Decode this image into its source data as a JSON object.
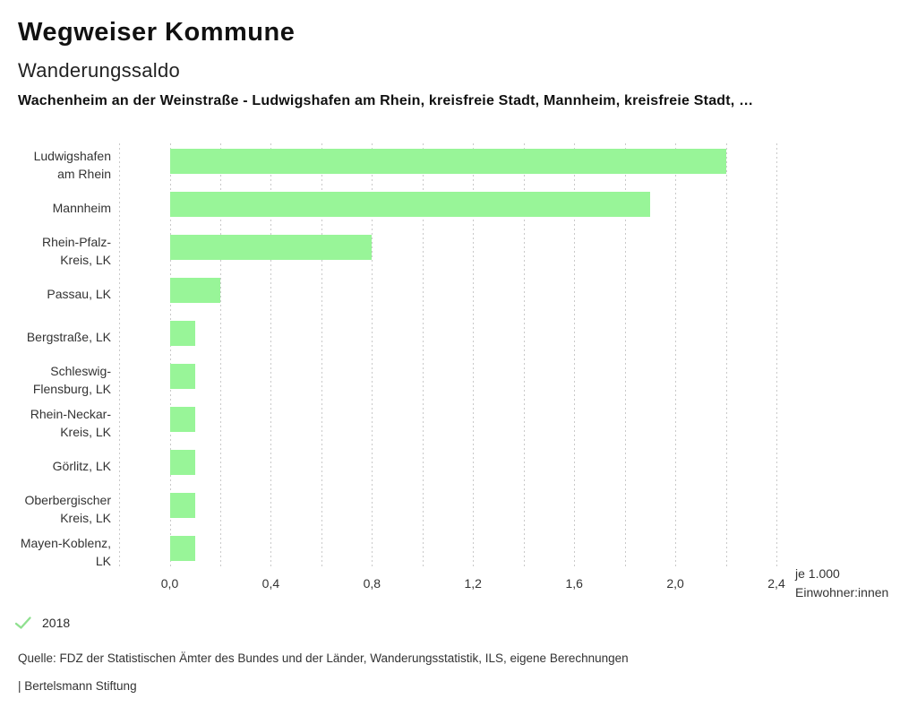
{
  "header": {
    "app_title": "Wegweiser Kommune",
    "chart_title": "Wanderungssaldo",
    "subtitle": "Wachenheim an der Weinstraße - Ludwigshafen am Rhein, kreisfreie Stadt, Mannheim, kreisfreie Stadt, …"
  },
  "chart_data": {
    "type": "bar",
    "orientation": "horizontal",
    "title": "Wanderungssaldo",
    "categories": [
      "Ludwigshafen am Rhein",
      "Mannheim",
      "Rhein-Pfalz-Kreis, LK",
      "Passau, LK",
      "Bergstraße, LK",
      "Schleswig-Flensburg, LK",
      "Rhein-Neckar-Kreis, LK",
      "Görlitz, LK",
      "Oberbergischer Kreis, LK",
      "Mayen-Koblenz, LK"
    ],
    "label_lines": [
      [
        "Ludwigshafen",
        "am Rhein"
      ],
      [
        "Mannheim"
      ],
      [
        "Rhein-Pfalz-",
        "Kreis, LK"
      ],
      [
        "Passau, LK"
      ],
      [
        "Bergstraße, LK"
      ],
      [
        "Schleswig-",
        "Flensburg, LK"
      ],
      [
        "Rhein-Neckar-",
        "Kreis, LK"
      ],
      [
        "Görlitz, LK"
      ],
      [
        "Oberbergischer",
        "Kreis, LK"
      ],
      [
        "Mayen-Koblenz,",
        "LK"
      ]
    ],
    "values": [
      2.2,
      1.9,
      0.8,
      0.2,
      0.1,
      0.1,
      0.1,
      0.1,
      0.1,
      0.1
    ],
    "xticks": [
      0.0,
      0.4,
      0.8,
      1.2,
      1.6,
      2.0,
      2.4
    ],
    "xticklabels": [
      "0,0",
      "0,4",
      "0,8",
      "1,2",
      "1,6",
      "2,0",
      "2,4"
    ],
    "xlabel_lines": [
      "je 1.000",
      "Einwohner:innen"
    ],
    "xlim": [
      -0.2,
      2.4
    ],
    "gridline_step": 0.2,
    "grid": "dashed-vertical",
    "legend_position": "bottom-left",
    "year": "2018",
    "bar_color": "#98f598",
    "gridline_color": "#c9c9c9"
  },
  "legend": {
    "year": "2018",
    "check_icon": "checkmark",
    "check_color": "#8fe08f"
  },
  "footer": {
    "source": "Quelle: FDZ der Statistischen Ämter des Bundes und der Länder, Wanderungsstatistik, ILS, eigene Berechnungen",
    "branding": "| Bertelsmann Stiftung"
  }
}
